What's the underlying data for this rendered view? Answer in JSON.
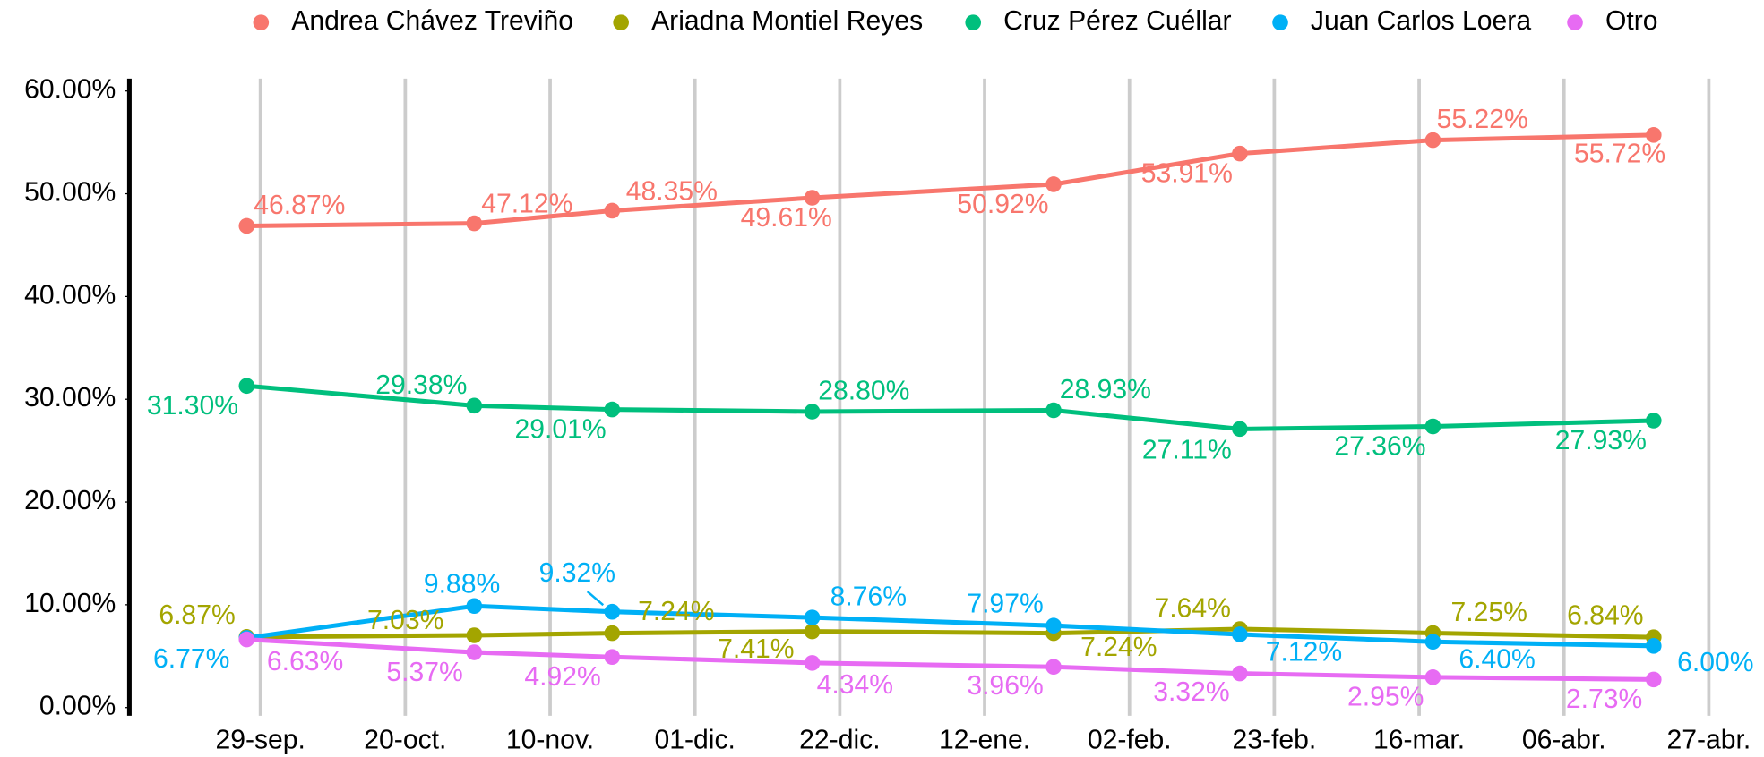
{
  "chart_data": {
    "type": "line",
    "x": [
      "09-27",
      "10-30",
      "11-19",
      "12-18",
      "01-22",
      "02-18",
      "03-18",
      "04-19"
    ],
    "xlim": [
      "09-10",
      "05-05"
    ],
    "xticks": [
      {
        "value": "09-29",
        "label": "29-sep."
      },
      {
        "value": "10-20",
        "label": "20-oct."
      },
      {
        "value": "11-10",
        "label": "10-nov."
      },
      {
        "value": "12-01",
        "label": "01-dic."
      },
      {
        "value": "12-22",
        "label": "22-dic."
      },
      {
        "value": "01-12",
        "label": "12-ene."
      },
      {
        "value": "02-02",
        "label": "02-feb."
      },
      {
        "value": "02-23",
        "label": "23-feb."
      },
      {
        "value": "03-16",
        "label": "16-mar."
      },
      {
        "value": "04-06",
        "label": "06-abr."
      },
      {
        "value": "04-27",
        "label": "27-abr."
      }
    ],
    "ylim": [
      -0.8,
      61.2
    ],
    "yticks": [
      {
        "value": 0,
        "label": "0.00%"
      },
      {
        "value": 10,
        "label": "10.00%"
      },
      {
        "value": 20,
        "label": "20.00%"
      },
      {
        "value": 30,
        "label": "30.00%"
      },
      {
        "value": 40,
        "label": "40.00%"
      },
      {
        "value": 50,
        "label": "50.00%"
      },
      {
        "value": 60,
        "label": "60.00%"
      }
    ],
    "grid": "x",
    "legend": "top",
    "series": [
      {
        "name": "Andrea Chávez Treviño",
        "color": "#F8766D",
        "values": [
          46.87,
          47.12,
          48.35,
          49.61,
          50.92,
          53.91,
          55.22,
          55.72
        ],
        "value_labels": [
          "46.87%",
          "47.12%",
          "48.35%",
          "49.61%",
          "50.92%",
          "53.91%",
          "55.22%",
          "55.72%"
        ]
      },
      {
        "name": "Ariadna Montiel Reyes",
        "color": "#A3A500",
        "values": [
          6.87,
          7.03,
          7.24,
          7.41,
          7.24,
          7.64,
          7.25,
          6.84
        ],
        "value_labels": [
          "6.87%",
          "7.03%",
          "7.24%",
          "7.41%",
          "7.24%",
          "7.64%",
          "7.25%",
          "6.84%"
        ]
      },
      {
        "name": "Cruz Pérez Cuéllar",
        "color": "#00BF7D",
        "values": [
          31.3,
          29.38,
          29.01,
          28.8,
          28.93,
          27.11,
          27.36,
          27.93
        ],
        "value_labels": [
          "31.30%",
          "29.38%",
          "29.01%",
          "28.80%",
          "28.93%",
          "27.11%",
          "27.36%",
          "27.93%"
        ]
      },
      {
        "name": "Juan Carlos Loera",
        "color": "#00B0F6",
        "values": [
          6.77,
          9.88,
          9.32,
          8.76,
          7.97,
          7.12,
          6.4,
          6.0
        ],
        "value_labels": [
          "6.77%",
          "9.88%",
          "9.32%",
          "8.76%",
          "7.97%",
          "7.12%",
          "6.40%",
          "6.00%"
        ]
      },
      {
        "name": "Otro",
        "color": "#E76BF3",
        "values": [
          6.63,
          5.37,
          4.92,
          4.34,
          3.96,
          3.32,
          2.95,
          2.73
        ],
        "value_labels": [
          "6.63%",
          "5.37%",
          "4.92%",
          "4.34%",
          "3.96%",
          "3.32%",
          "2.95%",
          "2.73%"
        ]
      }
    ]
  }
}
